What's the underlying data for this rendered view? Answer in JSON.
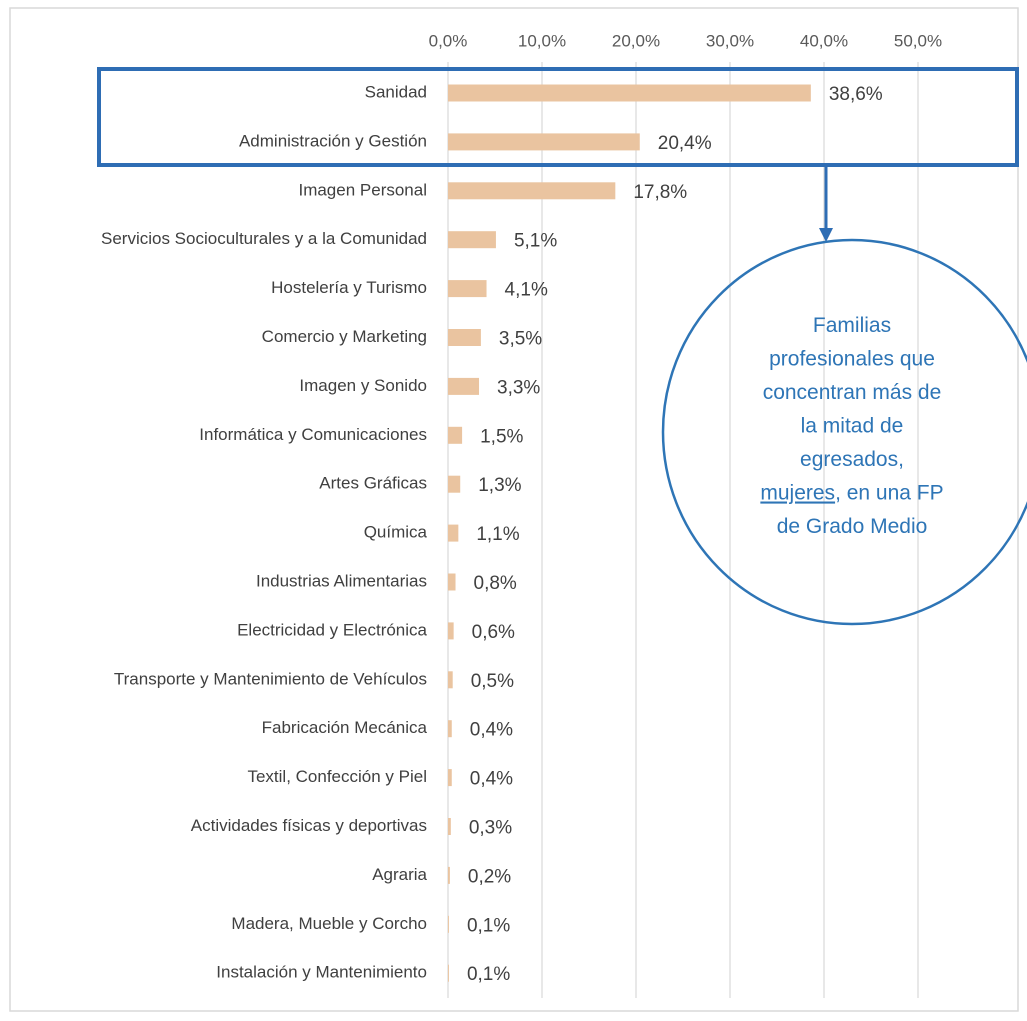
{
  "chart_data": {
    "type": "bar",
    "orientation": "horizontal",
    "categories": [
      "Sanidad",
      "Administración y Gestión",
      "Imagen Personal",
      "Servicios Socioculturales y a la Comunidad",
      "Hostelería y Turismo",
      "Comercio y Marketing",
      "Imagen y Sonido",
      "Informática y Comunicaciones",
      "Artes Gráficas",
      "Química",
      "Industrias Alimentarias",
      "Electricidad y Electrónica",
      "Transporte y Mantenimiento de Vehículos",
      "Fabricación Mecánica",
      "Textil, Confección y Piel",
      "Actividades físicas y deportivas",
      "Agraria",
      "Madera, Mueble y Corcho",
      "Instalación y Mantenimiento"
    ],
    "values": [
      38.6,
      20.4,
      17.8,
      5.1,
      4.1,
      3.5,
      3.3,
      1.5,
      1.3,
      1.1,
      0.8,
      0.6,
      0.5,
      0.4,
      0.4,
      0.3,
      0.2,
      0.1,
      0.1
    ],
    "value_labels": [
      "38,6%",
      "20,4%",
      "17,8%",
      "5,1%",
      "4,1%",
      "3,5%",
      "3,3%",
      "1,5%",
      "1,3%",
      "1,1%",
      "0,8%",
      "0,6%",
      "0,5%",
      "0,4%",
      "0,4%",
      "0,3%",
      "0,2%",
      "0,1%",
      "0,1%"
    ],
    "color": "#eac4a0",
    "xlim": [
      0,
      50
    ],
    "xticks": [
      {
        "value": 0,
        "label": "0,0%"
      },
      {
        "value": 10,
        "label": "10,0%"
      },
      {
        "value": 20,
        "label": "20,0%"
      },
      {
        "value": 30,
        "label": "30,0%"
      },
      {
        "value": 40,
        "label": "40,0%"
      },
      {
        "value": 50,
        "label": "50,0%"
      }
    ],
    "grid": true,
    "annotation": [
      "Familias",
      "profesionales que",
      "concentran más de",
      "la mitad de",
      "egresados,",
      "mujeres",
      ", en una FP",
      "de Grado Medio"
    ]
  }
}
